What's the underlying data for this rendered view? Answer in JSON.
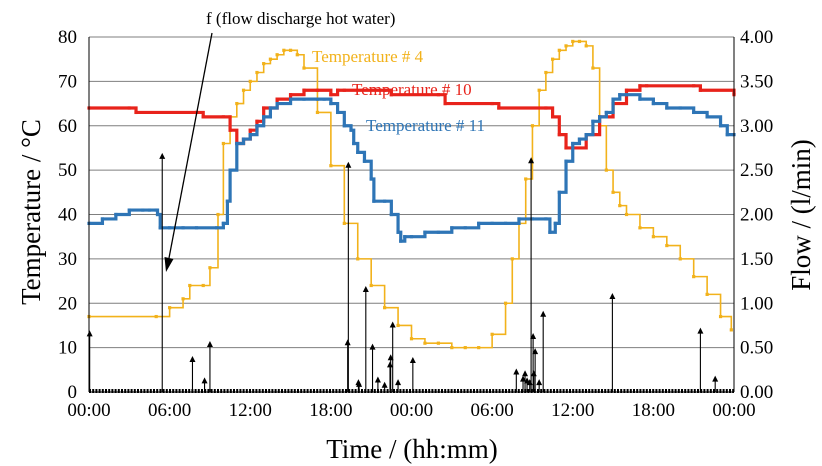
{
  "chart_data": {
    "type": "line",
    "title": "",
    "xlabel": "Time / (hh:mm)",
    "ylabel": "Temperature / °C",
    "y2label": "Flow / (l/min)",
    "x_unit": "hours",
    "xlim": [
      0,
      48
    ],
    "ylim": [
      0,
      80
    ],
    "y2lim": [
      0,
      4.0
    ],
    "grid": true,
    "legend": "none",
    "x_ticks": [
      "00:00",
      "06:00",
      "12:00",
      "18:00",
      "00:00",
      "06:00",
      "12:00",
      "18:00",
      "00:00"
    ],
    "y_ticks": [
      "0",
      "10",
      "20",
      "30",
      "40",
      "50",
      "60",
      "70",
      "80"
    ],
    "y2_ticks": [
      "0.00",
      "0.50",
      "1.00",
      "1.50",
      "2.00",
      "2.50",
      "3.00",
      "3.50",
      "4.00"
    ],
    "annotation": "f (flow discharge hot water)",
    "series": [
      {
        "name": "Temperature # 4",
        "color": "#F2B21B",
        "axis": "left",
        "x": [
          0,
          5.0,
          6.0,
          7.0,
          7.5,
          8.5,
          9.0,
          9.6,
          10.0,
          10.5,
          11.0,
          11.5,
          12.0,
          12.5,
          13.0,
          13.5,
          14.0,
          14.5,
          15.0,
          15.5,
          16.0,
          17.0,
          18.0,
          19.0,
          20.0,
          21.0,
          22.0,
          23.0,
          24.0,
          25.0,
          26.0,
          27.0,
          28.0,
          29.0,
          30.0,
          31.0,
          31.5,
          32.0,
          32.5,
          33.0,
          33.5,
          34.0,
          34.5,
          35.0,
          35.5,
          36.0,
          36.5,
          37.0,
          37.5,
          38.0,
          38.5,
          39.0,
          39.5,
          40.0,
          41.0,
          42.0,
          43.0,
          44.0,
          45.0,
          46.0,
          47.0,
          47.8
        ],
        "y": [
          17,
          17,
          19,
          21,
          24,
          24,
          28,
          40,
          56,
          62,
          65,
          68,
          70,
          72,
          74,
          75,
          76,
          77,
          77,
          76,
          73,
          63,
          51,
          38,
          30,
          24,
          19,
          15,
          12,
          11,
          11,
          10,
          10,
          10,
          13,
          20,
          30,
          38,
          48,
          60,
          68,
          72,
          75,
          77,
          78,
          79,
          79,
          78,
          73,
          60,
          50,
          45,
          42,
          40,
          37,
          35,
          33,
          30,
          26,
          22,
          17,
          14
        ]
      },
      {
        "name": "Temperature # 10",
        "color": "#E8231B",
        "axis": "left",
        "x": [
          0,
          3.0,
          3.5,
          8.0,
          8.5,
          10.0,
          10.5,
          11.0,
          11.5,
          12.0,
          12.5,
          13.0,
          14.0,
          15.0,
          16.0,
          17.0,
          18.0,
          18.5,
          19.0,
          22.0,
          22.5,
          26.0,
          26.5,
          30.0,
          30.5,
          34.0,
          34.5,
          35.0,
          35.5,
          36.0,
          37.0,
          38.0,
          39.0,
          40.0,
          41.0,
          41.5,
          45.0,
          45.5,
          48.0
        ],
        "y": [
          64,
          64,
          63,
          63,
          62,
          62,
          59,
          56,
          57,
          59,
          61,
          64,
          66,
          67,
          68,
          68,
          67,
          68,
          68,
          68,
          67,
          67,
          65,
          65,
          64,
          64,
          62,
          58,
          55,
          55,
          58,
          62,
          65,
          68,
          69,
          69,
          69,
          68,
          67
        ]
      },
      {
        "name": "Temperature # 11",
        "color": "#2E75B6",
        "axis": "left",
        "x": [
          0,
          1.0,
          2.0,
          3.0,
          4.0,
          4.5,
          5.0,
          5.1,
          5.3,
          6.0,
          7.0,
          8.0,
          9.5,
          10.0,
          10.3,
          10.5,
          11.0,
          11.5,
          12.0,
          12.5,
          13.0,
          13.5,
          14.0,
          15.0,
          16.0,
          17.0,
          17.5,
          18.0,
          18.5,
          19.0,
          19.5,
          19.7,
          20.0,
          20.5,
          21.0,
          21.2,
          22.0,
          22.5,
          23.0,
          23.2,
          23.5,
          24.0,
          25.0,
          26.0,
          27.0,
          28.0,
          29.0,
          30.0,
          31.0,
          32.0,
          33.0,
          34.0,
          34.3,
          34.7,
          35.0,
          35.5,
          36.0,
          36.5,
          37.0,
          37.5,
          38.0,
          38.5,
          39.0,
          39.5,
          40.0,
          41.0,
          42.0,
          43.0,
          44.0,
          45.0,
          46.0,
          47.0,
          47.5,
          48.0
        ],
        "y": [
          38,
          39,
          40,
          41,
          41,
          41,
          41,
          40,
          37,
          37,
          37,
          37,
          37,
          38,
          43,
          50,
          56,
          57,
          58,
          60,
          62,
          64,
          65,
          66,
          66,
          66,
          66,
          65,
          63,
          60,
          59,
          56,
          54,
          52,
          48,
          43,
          43,
          40,
          36,
          34,
          35,
          35,
          36,
          36,
          37,
          37,
          38,
          38,
          38,
          39,
          39,
          39,
          36,
          38,
          45,
          52,
          56,
          57,
          58,
          61,
          62,
          63,
          66,
          67,
          67,
          66,
          65,
          64,
          64,
          63,
          62,
          60,
          58,
          58
        ]
      },
      {
        "name": "f (flow discharge hot water)",
        "color": "#000000",
        "axis": "right",
        "kind": "impulse",
        "x": [
          0.05,
          5.45,
          7.7,
          8.6,
          9.0,
          19.25,
          19.3,
          20.05,
          20.1,
          20.6,
          21.1,
          21.5,
          22.0,
          22.4,
          22.45,
          22.6,
          23.0,
          24.1,
          31.8,
          32.3,
          32.45,
          32.6,
          32.8,
          32.9,
          33.05,
          33.1,
          33.2,
          33.5,
          33.8,
          38.95,
          45.5,
          46.6
        ],
        "y": [
          0.65,
          2.65,
          0.36,
          0.12,
          0.53,
          0.55,
          2.55,
          0.1,
          0.08,
          1.15,
          0.5,
          0.13,
          0.07,
          0.3,
          0.38,
          0.75,
          0.1,
          0.35,
          0.22,
          0.14,
          0.2,
          0.12,
          0.1,
          2.6,
          0.62,
          0.2,
          0.45,
          0.1,
          0.87,
          1.07,
          0.68,
          0.14
        ]
      }
    ]
  }
}
